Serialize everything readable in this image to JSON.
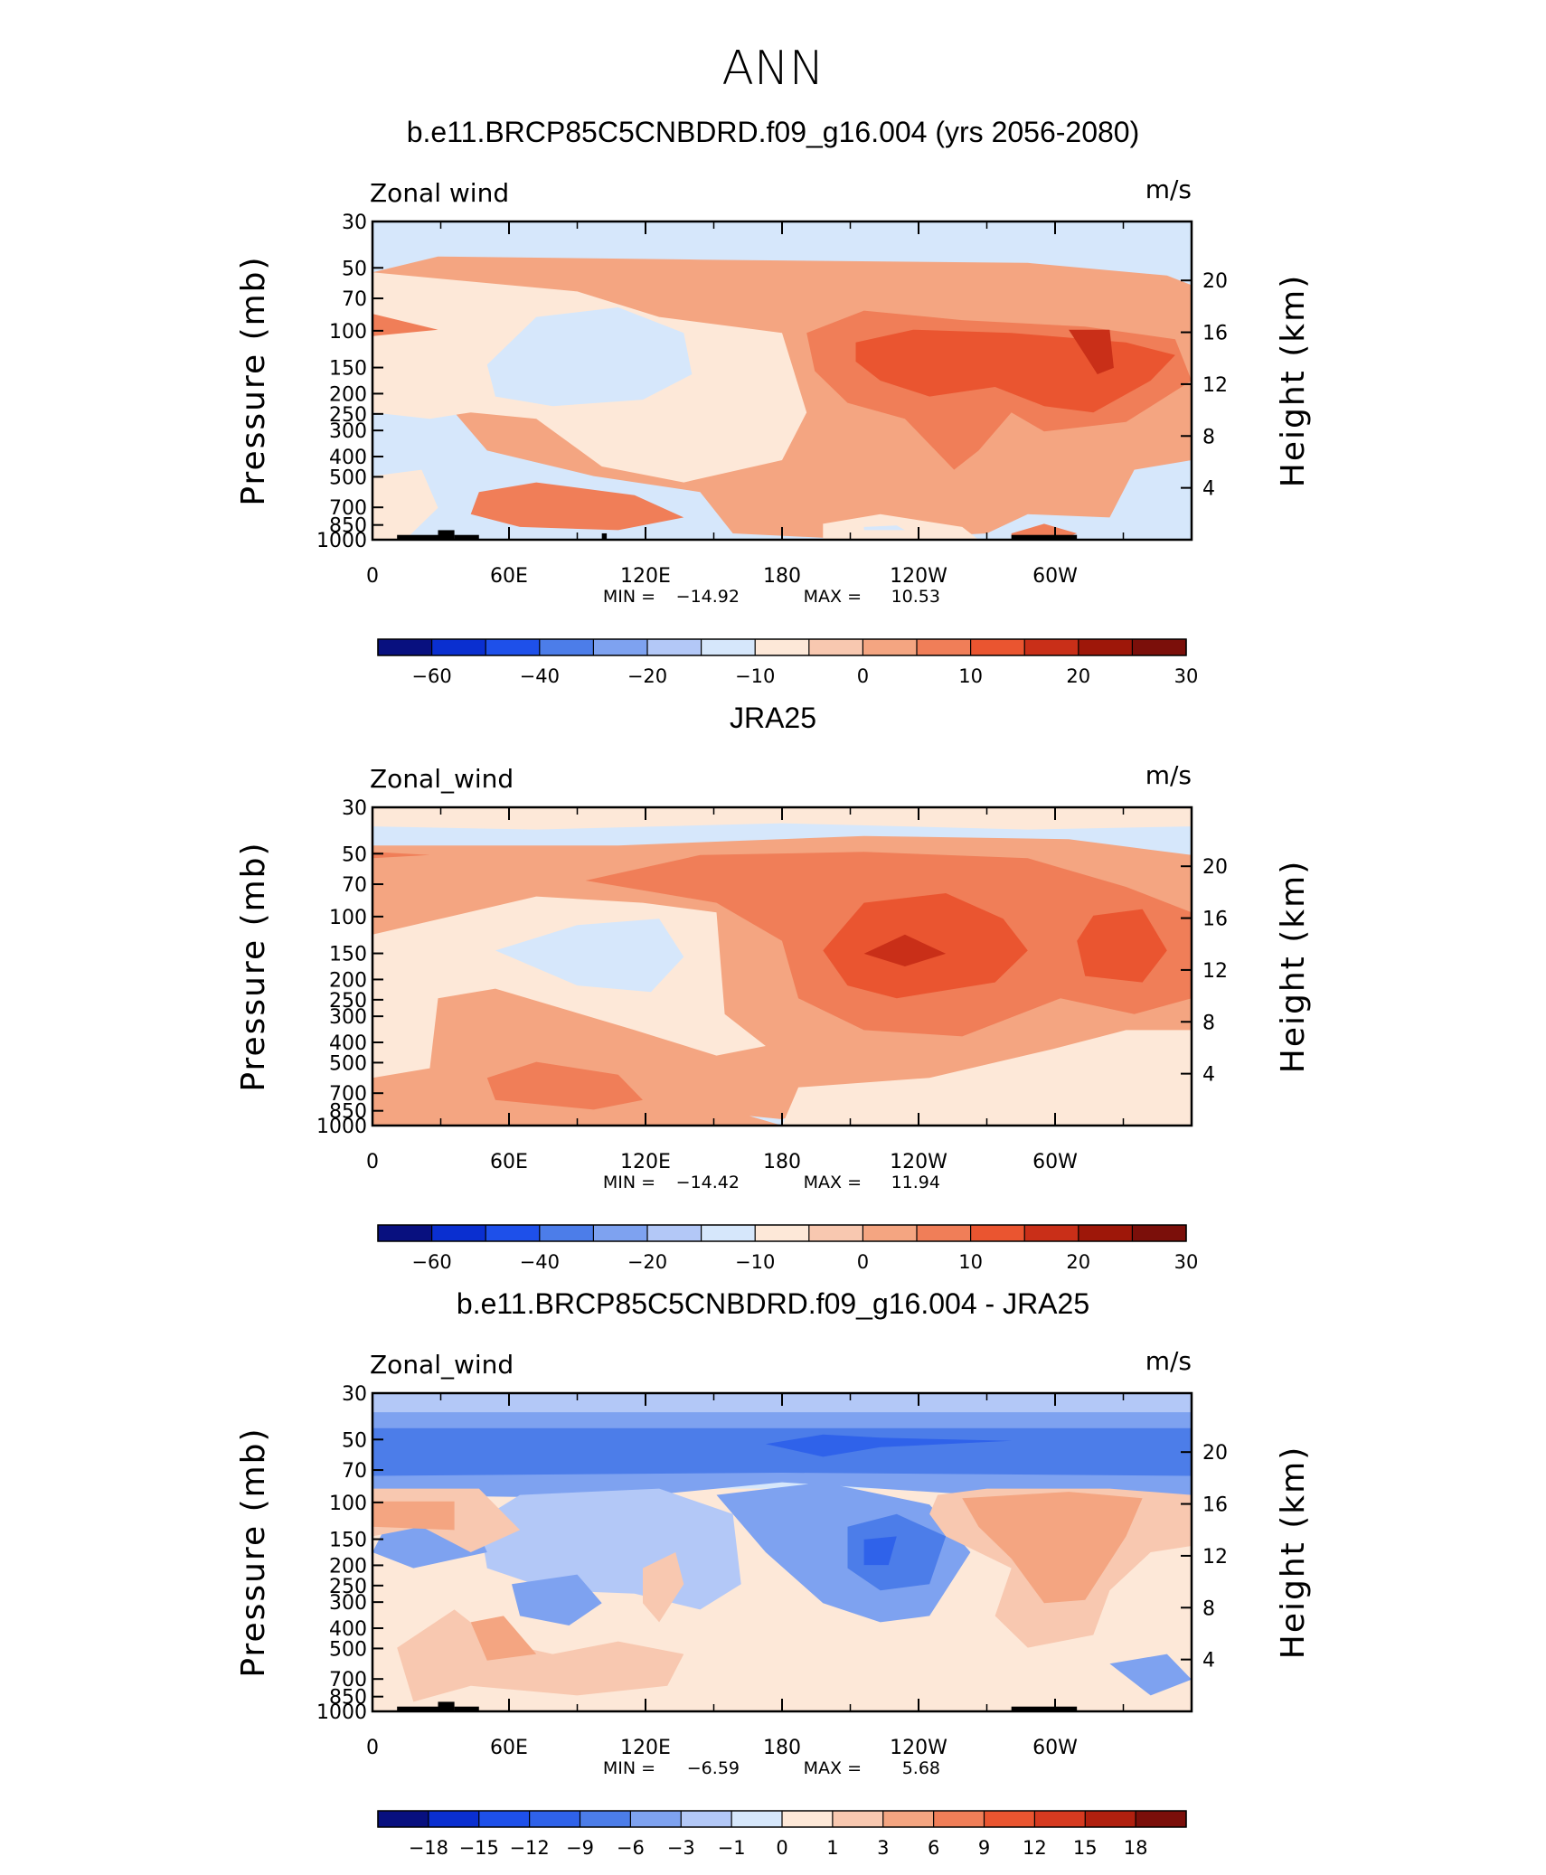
{
  "page_title": "ANN",
  "chart_data": [
    {
      "type": "heatmap",
      "title": "b.e11.BRCP85C5CNBDRD.f09_g16.004 (yrs 2056-2080)",
      "left_label": "Zonal wind",
      "right_label": "m/s",
      "ylabel": "Pressure  (mb)",
      "ylabel_right": "Height  (km)",
      "x_ticks": [
        "0",
        "60E",
        "120E",
        "180",
        "120W",
        "60W"
      ],
      "x_range": [
        0,
        360
      ],
      "y_ticks": [
        "30",
        "50",
        "70",
        "100",
        "150",
        "200",
        "250",
        "300",
        "400",
        "500",
        "700",
        "850",
        "1000"
      ],
      "y_range_mb": [
        1000,
        30
      ],
      "y_ticks_right": [
        "20",
        "16",
        "12",
        "8",
        "4"
      ],
      "stats": {
        "min_label": "MIN =",
        "min": "−14.92",
        "max_label": "MAX =",
        "max": "10.53"
      },
      "colorbar": {
        "labels": [
          "−60",
          "−40",
          "−20",
          "−10",
          "0",
          "10",
          "20",
          "30"
        ],
        "colors": [
          "#08107f",
          "#0a2fd0",
          "#1e50ea",
          "#4c7de9",
          "#7ea2f0",
          "#b3c8f7",
          "#d6e7fb",
          "#fde8d8",
          "#f8c8b0",
          "#f4a581",
          "#f07e58",
          "#ea5530",
          "#c92f18",
          "#9e1709",
          "#7b0f0a"
        ]
      },
      "terrain": true
    },
    {
      "type": "heatmap",
      "title": "JRA25",
      "left_label": "Zonal_wind",
      "right_label": "m/s",
      "ylabel": "Pressure  (mb)",
      "ylabel_right": "Height  (km)",
      "x_ticks": [
        "0",
        "60E",
        "120E",
        "180",
        "120W",
        "60W"
      ],
      "x_range": [
        0,
        360
      ],
      "y_ticks": [
        "30",
        "50",
        "70",
        "100",
        "150",
        "200",
        "250",
        "300",
        "400",
        "500",
        "700",
        "850",
        "1000"
      ],
      "y_range_mb": [
        1000,
        30
      ],
      "y_ticks_right": [
        "20",
        "16",
        "12",
        "8",
        "4"
      ],
      "stats": {
        "min_label": "MIN =",
        "min": "−14.42",
        "max_label": "MAX =",
        "max": "11.94"
      },
      "colorbar": {
        "labels": [
          "−60",
          "−40",
          "−20",
          "−10",
          "0",
          "10",
          "20",
          "30"
        ],
        "colors": [
          "#08107f",
          "#0a2fd0",
          "#1e50ea",
          "#4c7de9",
          "#7ea2f0",
          "#b3c8f7",
          "#d6e7fb",
          "#fde8d8",
          "#f8c8b0",
          "#f4a581",
          "#f07e58",
          "#ea5530",
          "#c92f18",
          "#9e1709",
          "#7b0f0a"
        ]
      },
      "terrain": false
    },
    {
      "type": "heatmap",
      "title": "b.e11.BRCP85C5CNBDRD.f09_g16.004 - JRA25",
      "left_label": "Zonal_wind",
      "right_label": "m/s",
      "ylabel": "Pressure  (mb)",
      "ylabel_right": "Height  (km)",
      "x_ticks": [
        "0",
        "60E",
        "120E",
        "180",
        "120W",
        "60W"
      ],
      "x_range": [
        0,
        360
      ],
      "y_ticks": [
        "30",
        "50",
        "70",
        "100",
        "150",
        "200",
        "250",
        "300",
        "400",
        "500",
        "700",
        "850",
        "1000"
      ],
      "y_range_mb": [
        1000,
        30
      ],
      "y_ticks_right": [
        "20",
        "16",
        "12",
        "8",
        "4"
      ],
      "stats": {
        "min_label": "MIN =",
        "min": "−6.59",
        "max_label": "MAX =",
        "max": "5.68"
      },
      "colorbar": {
        "labels": [
          "−18",
          "−15",
          "−12",
          "−9",
          "−6",
          "−3",
          "−1",
          "0",
          "1",
          "3",
          "6",
          "9",
          "12",
          "15",
          "18"
        ],
        "colors": [
          "#08107f",
          "#0a2fd0",
          "#1e50ea",
          "#2f62ea",
          "#4c7de9",
          "#7ea2f0",
          "#b3c8f7",
          "#d6e7fb",
          "#fde8d8",
          "#f8c8b0",
          "#f4a581",
          "#f07e58",
          "#ea5530",
          "#d63a20",
          "#b0200f",
          "#7b0f0a"
        ]
      },
      "terrain": true
    }
  ]
}
